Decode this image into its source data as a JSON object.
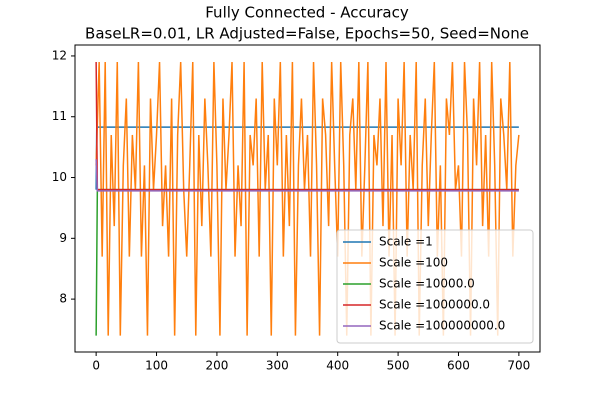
{
  "chart_data": {
    "type": "line",
    "title": "Fully Connected - Accuracy",
    "subtitle": "BaseLR=0.01, LR Adjusted=False, Epochs=50, Seed=None",
    "xlim": [
      -35,
      735
    ],
    "ylim": [
      7.13,
      12.18
    ],
    "xticks": [
      0,
      100,
      200,
      300,
      400,
      500,
      600,
      700
    ],
    "yticks": [
      8,
      9,
      10,
      11,
      12
    ],
    "legend": "lower right",
    "series": [
      {
        "name": "Scale =1",
        "color": "#1f77b4",
        "x": [
          0,
          1,
          700
        ],
        "values": [
          9.8,
          10.83,
          10.83
        ]
      },
      {
        "name": "Scale =100",
        "color": "#ff7f0e",
        "x": [
          0,
          5,
          10,
          15,
          20,
          25,
          30,
          35,
          40,
          45,
          50,
          55,
          60,
          65,
          70,
          75,
          80,
          85,
          90,
          95,
          100,
          105,
          110,
          115,
          120,
          125,
          130,
          135,
          140,
          145,
          150,
          155,
          160,
          165,
          170,
          175,
          180,
          185,
          190,
          195,
          200,
          205,
          210,
          215,
          220,
          225,
          230,
          235,
          240,
          245,
          250,
          255,
          260,
          265,
          270,
          275,
          280,
          285,
          290,
          295,
          300,
          305,
          310,
          315,
          320,
          325,
          330,
          335,
          340,
          345,
          350,
          355,
          360,
          365,
          370,
          375,
          380,
          385,
          390,
          395,
          400,
          405,
          410,
          415,
          420,
          425,
          430,
          435,
          440,
          445,
          450,
          455,
          460,
          465,
          470,
          475,
          480,
          485,
          490,
          495,
          500,
          505,
          510,
          515,
          520,
          525,
          530,
          535,
          540,
          545,
          550,
          555,
          560,
          565,
          570,
          575,
          580,
          585,
          590,
          595,
          600,
          605,
          610,
          615,
          620,
          625,
          630,
          635,
          640,
          645,
          650,
          655,
          660,
          665,
          670,
          675,
          680,
          685,
          690,
          695,
          700
        ],
        "values": [
          10.2,
          11.9,
          8.7,
          11.9,
          7.4,
          10.7,
          9.2,
          11.9,
          7.4,
          10.2,
          11.3,
          8.7,
          10.7,
          9.8,
          11.9,
          8.7,
          10.2,
          7.4,
          11.3,
          9.8,
          10.7,
          11.9,
          9.2,
          10.2,
          8.7,
          11.3,
          7.4,
          10.7,
          11.9,
          9.8,
          8.7,
          10.2,
          11.9,
          7.4,
          10.7,
          9.2,
          11.3,
          10.2,
          8.7,
          11.9,
          10.2,
          7.4,
          11.3,
          9.8,
          10.7,
          11.9,
          8.7,
          10.2,
          9.2,
          11.9,
          7.4,
          10.7,
          10.2,
          11.3,
          8.7,
          11.9,
          9.8,
          10.7,
          7.4,
          11.3,
          10.2,
          11.9,
          8.7,
          10.7,
          9.2,
          11.9,
          7.4,
          10.2,
          11.3,
          9.8,
          10.7,
          8.7,
          11.9,
          10.2,
          7.4,
          11.3,
          10.7,
          9.2,
          11.9,
          10.2,
          8.7,
          11.9,
          10.2,
          7.4,
          10.7,
          11.3,
          9.8,
          11.9,
          8.7,
          10.2,
          11.9,
          7.4,
          10.7,
          10.2,
          11.3,
          9.2,
          11.9,
          8.7,
          10.7,
          7.4,
          11.3,
          10.2,
          11.9,
          8.7,
          10.7,
          9.8,
          11.9,
          7.4,
          10.2,
          11.3,
          9.2,
          10.7,
          11.9,
          8.7,
          10.2,
          7.4,
          11.3,
          10.7,
          11.9,
          9.8,
          10.2,
          8.7,
          11.9,
          10.7,
          7.4,
          11.3,
          10.2,
          11.9,
          9.2,
          10.7,
          8.7,
          11.9,
          10.2,
          7.4,
          11.3,
          10.7,
          9.8,
          11.9,
          8.7,
          10.2,
          10.7
        ]
      },
      {
        "name": "Scale =10000.0",
        "color": "#2ca02c",
        "x": [
          0,
          2,
          700
        ],
        "values": [
          7.4,
          9.8,
          9.8
        ]
      },
      {
        "name": "Scale =1000000.0",
        "color": "#d62728",
        "x": [
          0,
          2,
          700
        ],
        "values": [
          11.9,
          9.8,
          9.8
        ]
      },
      {
        "name": "Scale =100000000.0",
        "color": "#9467bd",
        "x": [
          0,
          2,
          700
        ],
        "values": [
          10.3,
          9.78,
          9.78
        ]
      }
    ]
  }
}
